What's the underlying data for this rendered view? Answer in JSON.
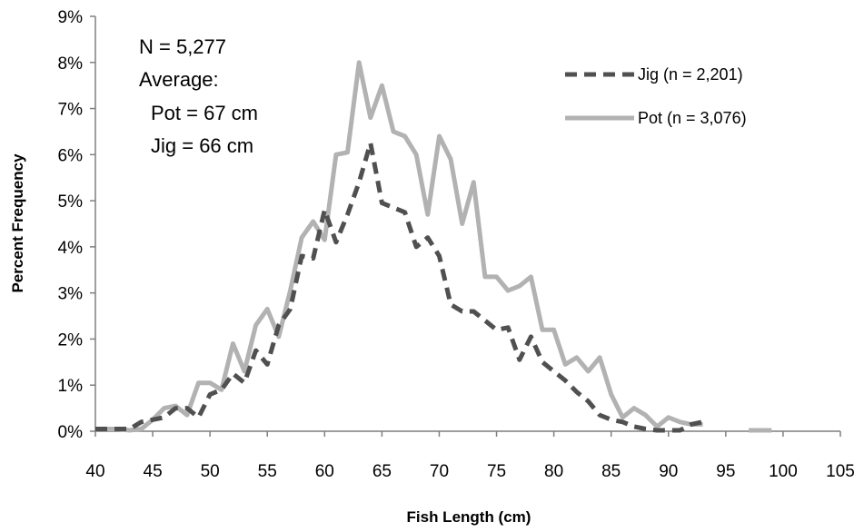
{
  "chart_data": {
    "type": "line",
    "title": "",
    "xlabel": "Fish Length (cm)",
    "ylabel": "Percent Frequency",
    "xlim": [
      40,
      105
    ],
    "ylim": [
      0,
      9
    ],
    "x_ticks": [
      40,
      45,
      50,
      55,
      60,
      65,
      70,
      75,
      80,
      85,
      90,
      95,
      100,
      105
    ],
    "y_ticks": [
      0,
      1,
      2,
      3,
      4,
      5,
      6,
      7,
      8,
      9
    ],
    "x_tick_labels": [
      "40",
      "45",
      "50",
      "55",
      "60",
      "65",
      "70",
      "75",
      "80",
      "85",
      "90",
      "95",
      "100",
      "105"
    ],
    "y_tick_labels": [
      "0%",
      "1%",
      "2%",
      "3%",
      "4%",
      "5%",
      "6%",
      "7%",
      "8%",
      "9%"
    ],
    "grid": false,
    "legend_position": "top-right",
    "annotations": [
      "N = 5,277",
      "Average:",
      "Pot = 67 cm",
      "Jig = 66 cm"
    ],
    "series": [
      {
        "name": "Jig (n = 2,201)",
        "color": "#505050",
        "style": "dashed",
        "x": [
          40,
          41,
          42,
          43,
          44,
          45,
          46,
          47,
          48,
          49,
          50,
          51,
          52,
          53,
          54,
          55,
          56,
          57,
          58,
          59,
          60,
          61,
          62,
          63,
          64,
          65,
          66,
          67,
          68,
          69,
          70,
          71,
          72,
          73,
          74,
          75,
          76,
          77,
          78,
          79,
          80,
          81,
          82,
          83,
          84,
          85,
          86,
          87,
          88,
          89,
          90,
          91,
          92,
          93
        ],
        "values": [
          0.05,
          0.05,
          0.05,
          0.05,
          0.2,
          0.25,
          0.3,
          0.5,
          0.5,
          0.3,
          0.8,
          0.9,
          1.25,
          1.05,
          1.75,
          1.45,
          2.3,
          2.65,
          3.8,
          3.75,
          4.8,
          4.1,
          4.7,
          5.4,
          6.25,
          4.95,
          4.85,
          4.75,
          4.0,
          4.2,
          3.8,
          2.75,
          2.6,
          2.6,
          2.4,
          2.2,
          2.25,
          1.55,
          2.05,
          1.5,
          1.3,
          1.1,
          0.85,
          0.65,
          0.35,
          0.25,
          0.2,
          0.1,
          0.05,
          0.02,
          0.02,
          0.02,
          0.15,
          0.2
        ]
      },
      {
        "name": "Pot (n = 3,076)",
        "color": "#b2b2b2",
        "style": "solid",
        "x": [
          40,
          41,
          42,
          43,
          44,
          45,
          46,
          47,
          48,
          49,
          50,
          51,
          52,
          53,
          54,
          55,
          56,
          57,
          58,
          59,
          60,
          61,
          62,
          63,
          64,
          65,
          66,
          67,
          68,
          69,
          70,
          71,
          72,
          73,
          74,
          75,
          76,
          77,
          78,
          79,
          80,
          81,
          82,
          83,
          84,
          85,
          86,
          87,
          88,
          89,
          90,
          91,
          92,
          93
        ],
        "values": [
          0.05,
          0.05,
          0.05,
          0.02,
          0.05,
          0.25,
          0.5,
          0.55,
          0.35,
          1.05,
          1.05,
          0.9,
          1.9,
          1.3,
          2.3,
          2.65,
          2.05,
          3.05,
          4.2,
          4.55,
          4.15,
          6.0,
          6.05,
          8.0,
          6.8,
          7.5,
          6.5,
          6.4,
          6.0,
          4.7,
          6.4,
          5.9,
          4.5,
          5.4,
          3.35,
          3.35,
          3.05,
          3.15,
          3.35,
          2.2,
          2.2,
          1.45,
          1.6,
          1.3,
          1.6,
          0.8,
          0.3,
          0.5,
          0.35,
          0.1,
          0.3,
          0.2,
          0.15,
          0.15
        ]
      },
      {
        "name": "",
        "color": "#b2b2b2",
        "style": "solid",
        "x": [
          97,
          99
        ],
        "values": [
          0.02,
          0.02
        ]
      }
    ]
  }
}
